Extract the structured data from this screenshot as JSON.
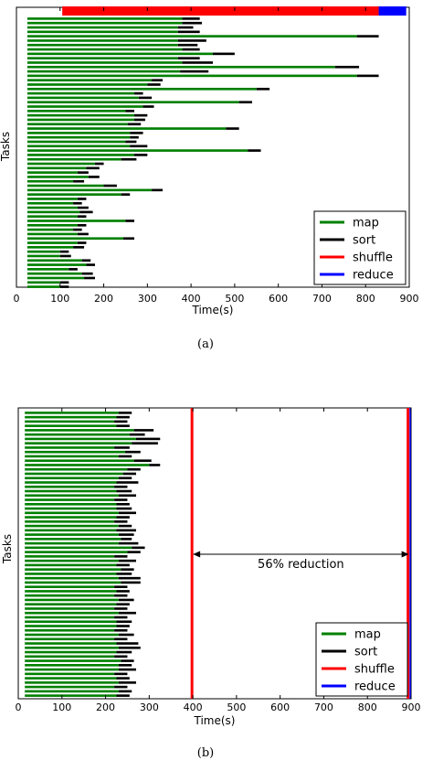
{
  "colors": {
    "map": "#008000",
    "sort": "#000000",
    "shuffle": "#ff0000",
    "reduce": "#0000ff"
  },
  "chart_data": [
    {
      "type": "gantt",
      "caption": "(a)",
      "xlabel": "Time(s)",
      "ylabel": "Tasks",
      "xlim": [
        0,
        900
      ],
      "xticks": [
        0,
        100,
        200,
        300,
        400,
        500,
        600,
        700,
        800,
        900
      ],
      "legend_position": "lower-right",
      "legend": [
        "map",
        "sort",
        "shuffle",
        "reduce"
      ],
      "reduce_task": {
        "shuffle": [
          105,
          830
        ],
        "reduce": [
          830,
          893
        ]
      },
      "map_tasks": [
        [
          25,
          380,
          420
        ],
        [
          25,
          380,
          425
        ],
        [
          25,
          370,
          405
        ],
        [
          25,
          370,
          420
        ],
        [
          25,
          780,
          830
        ],
        [
          25,
          370,
          435
        ],
        [
          25,
          370,
          415
        ],
        [
          25,
          380,
          420
        ],
        [
          25,
          450,
          500
        ],
        [
          25,
          370,
          420
        ],
        [
          25,
          380,
          450
        ],
        [
          25,
          730,
          785
        ],
        [
          25,
          375,
          440
        ],
        [
          25,
          780,
          830
        ],
        [
          25,
          310,
          335
        ],
        [
          25,
          300,
          330
        ],
        [
          25,
          550,
          580
        ],
        [
          25,
          270,
          290
        ],
        [
          25,
          280,
          310
        ],
        [
          25,
          510,
          540
        ],
        [
          25,
          290,
          315
        ],
        [
          25,
          250,
          270
        ],
        [
          25,
          270,
          300
        ],
        [
          25,
          270,
          295
        ],
        [
          25,
          255,
          285
        ],
        [
          25,
          480,
          510
        ],
        [
          25,
          260,
          290
        ],
        [
          25,
          260,
          280
        ],
        [
          25,
          250,
          275
        ],
        [
          25,
          260,
          300
        ],
        [
          25,
          530,
          560
        ],
        [
          25,
          270,
          300
        ],
        [
          25,
          240,
          275
        ],
        [
          25,
          180,
          200
        ],
        [
          25,
          160,
          190
        ],
        [
          25,
          140,
          165
        ],
        [
          25,
          165,
          190
        ],
        [
          25,
          130,
          155
        ],
        [
          25,
          200,
          230
        ],
        [
          25,
          310,
          335
        ],
        [
          25,
          240,
          260
        ],
        [
          25,
          140,
          160
        ],
        [
          25,
          130,
          150
        ],
        [
          25,
          140,
          165
        ],
        [
          25,
          145,
          175
        ],
        [
          25,
          140,
          160
        ],
        [
          25,
          250,
          270
        ],
        [
          25,
          140,
          160
        ],
        [
          25,
          130,
          150
        ],
        [
          25,
          140,
          165
        ],
        [
          25,
          245,
          270
        ],
        [
          25,
          140,
          160
        ],
        [
          25,
          130,
          155
        ],
        [
          25,
          100,
          120
        ],
        [
          25,
          100,
          125
        ],
        [
          25,
          150,
          170
        ],
        [
          25,
          160,
          180
        ],
        [
          25,
          120,
          140
        ],
        [
          25,
          150,
          175
        ],
        [
          25,
          155,
          180
        ],
        [
          25,
          100,
          120
        ],
        [
          25,
          100,
          120
        ]
      ]
    },
    {
      "type": "gantt",
      "caption": "(b)",
      "xlabel": "Time(s)",
      "ylabel": "Tasks",
      "xlim": [
        0,
        900
      ],
      "xticks": [
        0,
        100,
        200,
        300,
        400,
        500,
        600,
        700,
        800,
        900
      ],
      "legend_position": "lower-right",
      "legend": [
        "map",
        "sort",
        "shuffle",
        "reduce"
      ],
      "annotation": {
        "text": "56% reduction",
        "from": 400,
        "to": 895
      },
      "shuffle_lines": [
        398,
        893
      ],
      "reduce_lines": [
        898
      ],
      "map_tasks": [
        [
          15,
          230,
          260
        ],
        [
          15,
          225,
          255
        ],
        [
          15,
          220,
          250
        ],
        [
          15,
          225,
          255
        ],
        [
          15,
          265,
          310
        ],
        [
          15,
          255,
          290
        ],
        [
          15,
          270,
          325
        ],
        [
          15,
          260,
          320
        ],
        [
          15,
          220,
          255
        ],
        [
          15,
          245,
          280
        ],
        [
          15,
          230,
          260
        ],
        [
          15,
          265,
          305
        ],
        [
          15,
          300,
          325
        ],
        [
          15,
          250,
          280
        ],
        [
          15,
          240,
          270
        ],
        [
          15,
          230,
          260
        ],
        [
          15,
          225,
          275
        ],
        [
          15,
          220,
          250
        ],
        [
          15,
          225,
          260
        ],
        [
          15,
          230,
          270
        ],
        [
          15,
          220,
          250
        ],
        [
          15,
          225,
          255
        ],
        [
          15,
          225,
          260
        ],
        [
          15,
          230,
          270
        ],
        [
          15,
          225,
          255
        ],
        [
          15,
          220,
          250
        ],
        [
          15,
          230,
          260
        ],
        [
          15,
          225,
          270
        ],
        [
          15,
          230,
          265
        ],
        [
          15,
          235,
          260
        ],
        [
          15,
          230,
          275
        ],
        [
          15,
          260,
          290
        ],
        [
          15,
          250,
          280
        ],
        [
          15,
          220,
          250
        ],
        [
          15,
          230,
          270
        ],
        [
          15,
          225,
          255
        ],
        [
          15,
          235,
          265
        ],
        [
          15,
          225,
          260
        ],
        [
          15,
          230,
          280
        ],
        [
          15,
          235,
          280
        ],
        [
          15,
          220,
          250
        ],
        [
          15,
          225,
          255
        ],
        [
          15,
          220,
          250
        ],
        [
          15,
          230,
          265
        ],
        [
          15,
          225,
          255
        ],
        [
          15,
          220,
          250
        ],
        [
          15,
          230,
          270
        ],
        [
          15,
          220,
          250
        ],
        [
          15,
          225,
          260
        ],
        [
          15,
          225,
          255
        ],
        [
          15,
          220,
          250
        ],
        [
          15,
          230,
          265
        ],
        [
          15,
          220,
          250
        ],
        [
          15,
          225,
          275
        ],
        [
          15,
          230,
          280
        ],
        [
          15,
          225,
          260
        ],
        [
          15,
          220,
          250
        ],
        [
          15,
          235,
          265
        ],
        [
          15,
          230,
          260
        ],
        [
          15,
          230,
          270
        ],
        [
          15,
          220,
          250
        ],
        [
          15,
          225,
          255
        ],
        [
          15,
          230,
          270
        ],
        [
          15,
          220,
          250
        ],
        [
          15,
          230,
          260
        ],
        [
          15,
          225,
          255
        ]
      ]
    }
  ]
}
